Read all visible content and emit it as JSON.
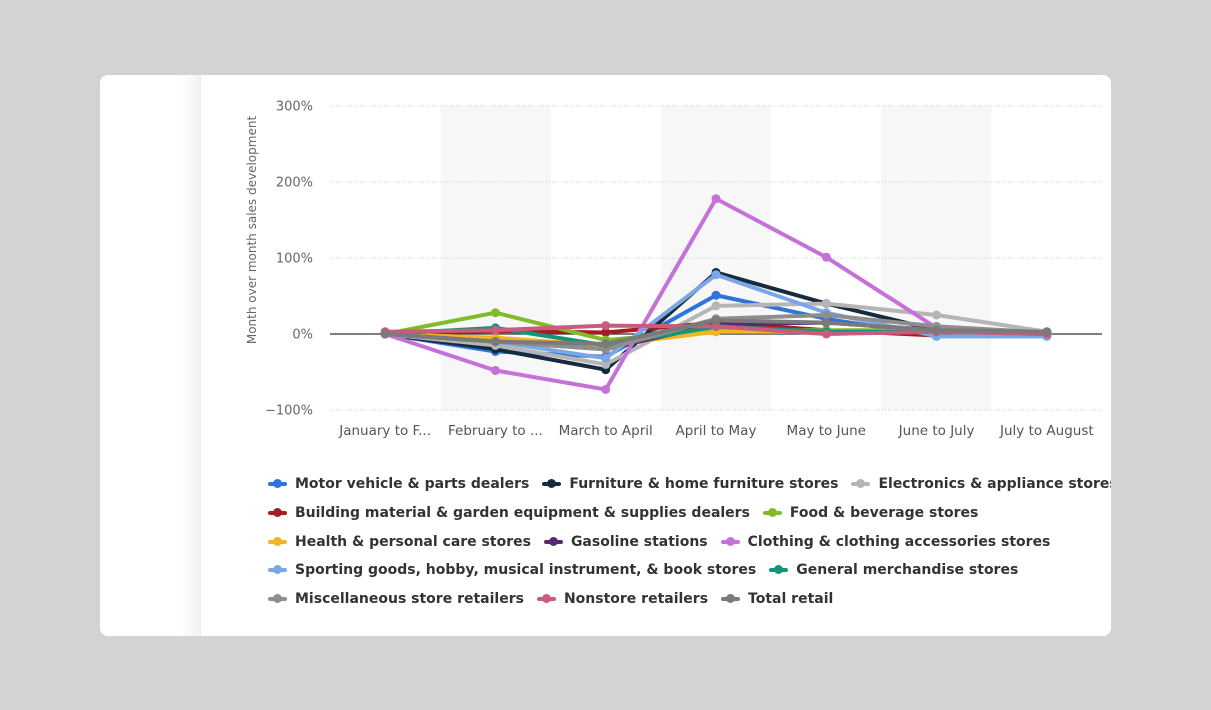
{
  "chart_data": {
    "type": "line",
    "ylabel": "Month over month sales development",
    "ylim": [
      -100,
      300
    ],
    "yticks": [
      300,
      200,
      100,
      0,
      -100
    ],
    "ytick_labels": [
      "300%",
      "200%",
      "100%",
      "0%",
      "−100%"
    ],
    "grid": true,
    "legend_position": "bottom",
    "categories": [
      "January to February",
      "February to March",
      "March to April",
      "April to May",
      "May to June",
      "June to July",
      "July to August"
    ],
    "category_labels": [
      "January to F...",
      "February to ...",
      "March to April",
      "April to May",
      "May to June",
      "June to July",
      "July to August"
    ],
    "series": [
      {
        "name": "Motor vehicle & parts dealers",
        "color": "#2f74d9",
        "values": [
          0,
          -23,
          -30,
          51,
          20,
          -3,
          -3
        ]
      },
      {
        "name": "Furniture & home furniture stores",
        "color": "#152a3f",
        "values": [
          0,
          -20,
          -47,
          81,
          40,
          5,
          2
        ]
      },
      {
        "name": "Electronics & appliance stores",
        "color": "#b5b5b5",
        "values": [
          0,
          -15,
          -40,
          37,
          40,
          25,
          3
        ]
      },
      {
        "name": "Building material & garden equipment & supplies dealers",
        "color": "#a51d20",
        "values": [
          0,
          4,
          2,
          15,
          5,
          -2,
          0
        ]
      },
      {
        "name": "Food & beverage stores",
        "color": "#81bb2a",
        "values": [
          0,
          28,
          -8,
          5,
          5,
          5,
          0
        ]
      },
      {
        "name": "Health & personal care stores",
        "color": "#f0b520",
        "values": [
          0,
          -5,
          -15,
          3,
          3,
          3,
          0
        ]
      },
      {
        "name": "Gasoline stations",
        "color": "#5b2a6e",
        "values": [
          0,
          -10,
          -20,
          13,
          15,
          5,
          2
        ]
      },
      {
        "name": "Clothing & clothing accessories stores",
        "color": "#c472da",
        "values": [
          0,
          -48,
          -73,
          178,
          101,
          8,
          2
        ]
      },
      {
        "name": "Sporting goods, hobby, musical instrument, & book stores",
        "color": "#7aa8e6",
        "values": [
          0,
          -10,
          -32,
          78,
          28,
          -3,
          -3
        ]
      },
      {
        "name": "General merchandise stores",
        "color": "#14957a",
        "values": [
          0,
          8,
          -15,
          10,
          3,
          3,
          0
        ]
      },
      {
        "name": "Miscellaneous store retailers",
        "color": "#8e8e8e",
        "values": [
          0,
          -10,
          -20,
          20,
          25,
          10,
          2
        ]
      },
      {
        "name": "Nonstore retailers",
        "color": "#c95c7e",
        "values": [
          3,
          5,
          11,
          10,
          0,
          3,
          0
        ]
      },
      {
        "name": "Total retail",
        "color": "#7a7a7a",
        "values": [
          0,
          -10,
          -13,
          18,
          15,
          5,
          3
        ]
      }
    ]
  },
  "legend": {
    "rows": [
      [
        0,
        1,
        2
      ],
      [
        3,
        4
      ],
      [
        5,
        6,
        7
      ],
      [
        8,
        9
      ],
      [
        10,
        11,
        12
      ]
    ]
  }
}
